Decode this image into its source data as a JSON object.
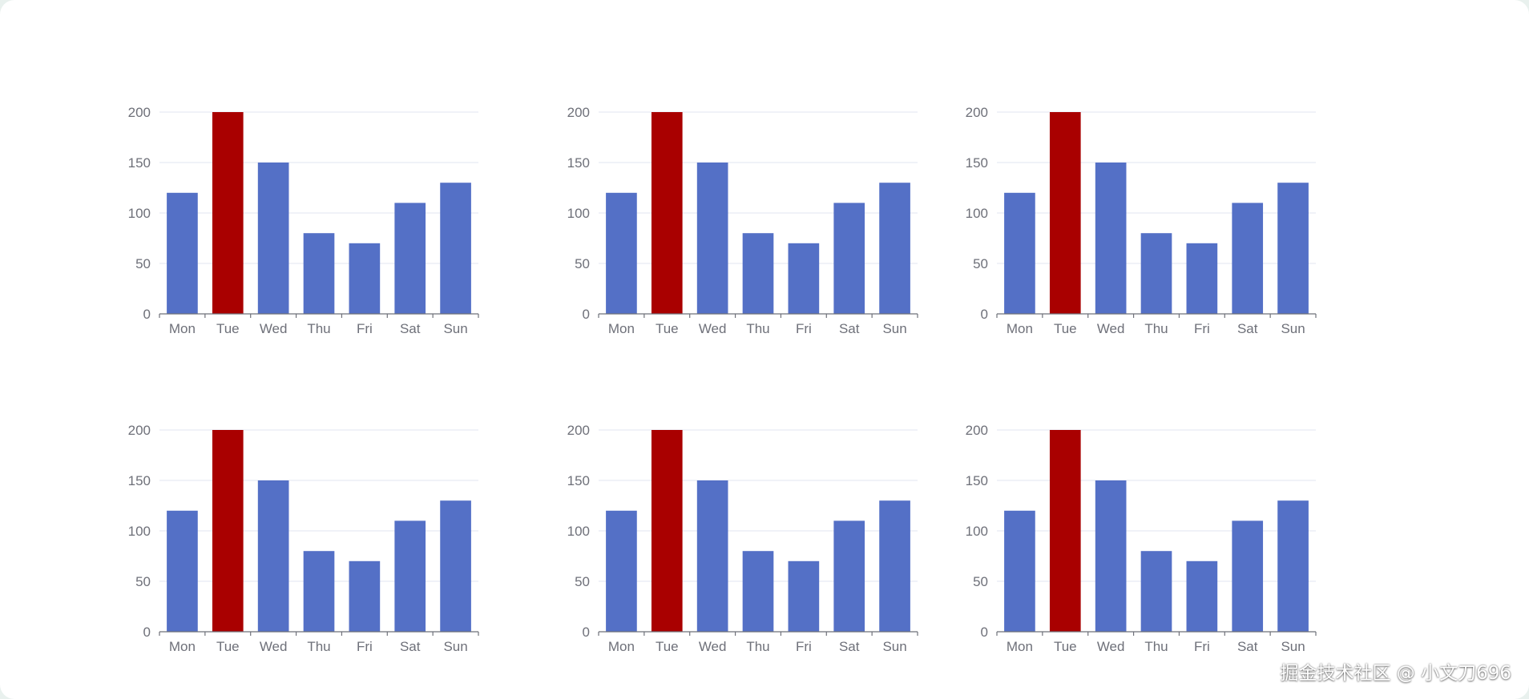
{
  "chart_data": [
    {
      "type": "bar",
      "categories": [
        "Mon",
        "Tue",
        "Wed",
        "Thu",
        "Fri",
        "Sat",
        "Sun"
      ],
      "values": [
        120,
        200,
        150,
        80,
        70,
        110,
        130
      ],
      "highlight_index": 1,
      "ylim": [
        0,
        200
      ],
      "yticks": [
        0,
        50,
        100,
        150,
        200
      ],
      "grid": true
    },
    {
      "type": "bar",
      "categories": [
        "Mon",
        "Tue",
        "Wed",
        "Thu",
        "Fri",
        "Sat",
        "Sun"
      ],
      "values": [
        120,
        200,
        150,
        80,
        70,
        110,
        130
      ],
      "highlight_index": 1,
      "ylim": [
        0,
        200
      ],
      "yticks": [
        0,
        50,
        100,
        150,
        200
      ],
      "grid": true
    },
    {
      "type": "bar",
      "categories": [
        "Mon",
        "Tue",
        "Wed",
        "Thu",
        "Fri",
        "Sat",
        "Sun"
      ],
      "values": [
        120,
        200,
        150,
        80,
        70,
        110,
        130
      ],
      "highlight_index": 1,
      "ylim": [
        0,
        200
      ],
      "yticks": [
        0,
        50,
        100,
        150,
        200
      ],
      "grid": true
    },
    {
      "type": "bar",
      "categories": [
        "Mon",
        "Tue",
        "Wed",
        "Thu",
        "Fri",
        "Sat",
        "Sun"
      ],
      "values": [
        120,
        200,
        150,
        80,
        70,
        110,
        130
      ],
      "highlight_index": 1,
      "ylim": [
        0,
        200
      ],
      "yticks": [
        0,
        50,
        100,
        150,
        200
      ],
      "grid": true
    },
    {
      "type": "bar",
      "categories": [
        "Mon",
        "Tue",
        "Wed",
        "Thu",
        "Fri",
        "Sat",
        "Sun"
      ],
      "values": [
        120,
        200,
        150,
        80,
        70,
        110,
        130
      ],
      "highlight_index": 1,
      "ylim": [
        0,
        200
      ],
      "yticks": [
        0,
        50,
        100,
        150,
        200
      ],
      "grid": true
    },
    {
      "type": "bar",
      "categories": [
        "Mon",
        "Tue",
        "Wed",
        "Thu",
        "Fri",
        "Sat",
        "Sun"
      ],
      "values": [
        120,
        200,
        150,
        80,
        70,
        110,
        130
      ],
      "highlight_index": 1,
      "ylim": [
        0,
        200
      ],
      "yticks": [
        0,
        50,
        100,
        150,
        200
      ],
      "grid": true
    }
  ],
  "colors": {
    "bar": "#5470c6",
    "highlight": "#a90000",
    "axis_text": "#6e7079",
    "axis_line": "#6e7079",
    "grid": "#e0e6f1"
  },
  "watermark": "掘金技术社区 @ 小文刀696"
}
